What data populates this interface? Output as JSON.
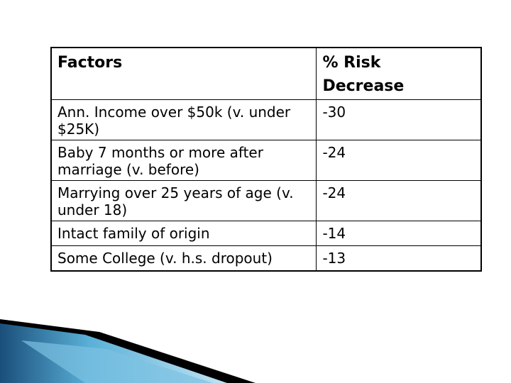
{
  "table": {
    "headers": {
      "factor": "Factors",
      "risk_line1": "% Risk",
      "risk_line2": "Decrease"
    },
    "rows": [
      {
        "factor": "Ann. Income over $50k (v. under $25K)",
        "risk": "-30"
      },
      {
        "factor": "Baby 7 months or more after marriage (v. before)",
        "risk": "-24"
      },
      {
        "factor": "Marrying over 25 years of age (v. under 18)",
        "risk": "-24"
      },
      {
        "factor": "Intact family of origin",
        "risk": "-14"
      },
      {
        "factor": "Some College (v. h.s. dropout)",
        "risk": "-13"
      }
    ]
  },
  "decoration": {
    "accent_dark": "#1a4f7a",
    "accent_light": "#5ab0d8",
    "accent_black": "#000000"
  }
}
